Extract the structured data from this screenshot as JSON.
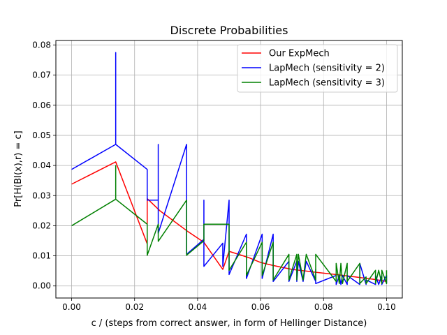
{
  "chart_data": {
    "type": "line",
    "title": "Discrete Probabilities",
    "xlabel": "c / (steps from correct answer, in form of Hellinger Distance)",
    "ylabel": "Pr[H(BI(x),r) = c]",
    "xlim": [
      -0.005,
      0.105
    ],
    "ylim": [
      -0.004,
      0.0815
    ],
    "grid": true,
    "legend_position": "upper right",
    "x_ticks": [
      0.0,
      0.02,
      0.04,
      0.06,
      0.08,
      0.1
    ],
    "x_tick_labels": [
      "0.00",
      "0.02",
      "0.04",
      "0.06",
      "0.08",
      "0.10"
    ],
    "y_ticks": [
      0.0,
      0.01,
      0.02,
      0.03,
      0.04,
      0.05,
      0.06,
      0.07,
      0.08
    ],
    "y_tick_labels": [
      "0.00",
      "0.01",
      "0.02",
      "0.03",
      "0.04",
      "0.05",
      "0.06",
      "0.07",
      "0.08"
    ],
    "series": [
      {
        "name": "Our ExpMech",
        "color": "#ff0000",
        "x": [
          0.0,
          0.014,
          0.024,
          0.024,
          0.028,
          0.037,
          0.042,
          0.048,
          0.05,
          0.056,
          0.06,
          0.064,
          0.07,
          0.074,
          0.078,
          0.084,
          0.09,
          0.096,
          0.1
        ],
        "y": [
          0.0338,
          0.0412,
          0.014,
          0.029,
          0.025,
          0.018,
          0.0145,
          0.0055,
          0.0115,
          0.0095,
          0.0078,
          0.0068,
          0.0055,
          0.005,
          0.0045,
          0.0038,
          0.003,
          0.0022,
          0.0015
        ]
      },
      {
        "name": "LapMech (sensitivity = 2)",
        "color": "#0000ff",
        "x": [
          0.0,
          0.014,
          0.014,
          0.014,
          0.024,
          0.024,
          0.024,
          0.0275,
          0.0275,
          0.0275,
          0.0365,
          0.0365,
          0.0365,
          0.042,
          0.042,
          0.042,
          0.048,
          0.048,
          0.05,
          0.05,
          0.05,
          0.0555,
          0.0555,
          0.0555,
          0.0605,
          0.0605,
          0.0605,
          0.064,
          0.064,
          0.064,
          0.069,
          0.069,
          0.069,
          0.0715,
          0.0715,
          0.072,
          0.0735,
          0.0745,
          0.0775,
          0.0775,
          0.0775,
          0.084,
          0.084,
          0.085,
          0.0855,
          0.086,
          0.0875,
          0.0875,
          0.0915,
          0.0915,
          0.0935,
          0.0935,
          0.0965,
          0.0965,
          0.0975,
          0.0985,
          0.0985,
          0.1,
          0.1
        ],
        "y": [
          0.0387,
          0.047,
          0.0775,
          0.047,
          0.0387,
          0.0285,
          0.0285,
          0.0285,
          0.047,
          0.0175,
          0.047,
          0.0105,
          0.0105,
          0.0155,
          0.0285,
          0.0065,
          0.0142,
          0.0065,
          0.0285,
          0.0038,
          0.0038,
          0.0172,
          0.0025,
          0.0025,
          0.0172,
          0.0025,
          0.0025,
          0.0172,
          0.0015,
          0.0015,
          0.0082,
          0.0015,
          0.0015,
          0.0082,
          0.0015,
          0.0082,
          0.0015,
          0.0082,
          0.0015,
          0.0055,
          0.0008,
          0.0035,
          0.0005,
          0.0035,
          0.0005,
          0.0035,
          0.0005,
          0.0035,
          0.0005,
          0.0075,
          0.0005,
          0.002,
          0.0005,
          0.0035,
          0.0005,
          0.0035,
          0.0005,
          0.0035,
          0.0008
        ]
      },
      {
        "name": "LapMech (sensitivity = 3)",
        "color": "#008000",
        "x": [
          0.0,
          0.014,
          0.014,
          0.014,
          0.024,
          0.024,
          0.024,
          0.0275,
          0.0275,
          0.0365,
          0.0365,
          0.0365,
          0.042,
          0.042,
          0.05,
          0.05,
          0.05,
          0.0555,
          0.0555,
          0.0605,
          0.0605,
          0.064,
          0.064,
          0.069,
          0.069,
          0.0715,
          0.0715,
          0.072,
          0.0735,
          0.0745,
          0.0775,
          0.0775,
          0.084,
          0.084,
          0.085,
          0.0855,
          0.086,
          0.0875,
          0.0875,
          0.0915,
          0.0915,
          0.0935,
          0.0935,
          0.0965,
          0.0965,
          0.0975,
          0.0985,
          0.0985,
          0.1,
          0.1
        ],
        "y": [
          0.02,
          0.0288,
          0.04,
          0.0288,
          0.0205,
          0.0205,
          0.0102,
          0.0205,
          0.0148,
          0.0285,
          0.0102,
          0.0102,
          0.015,
          0.0205,
          0.0205,
          0.0052,
          0.0052,
          0.0145,
          0.0035,
          0.0145,
          0.0035,
          0.0145,
          0.002,
          0.0105,
          0.002,
          0.0105,
          0.002,
          0.0105,
          0.002,
          0.0105,
          0.002,
          0.0105,
          0.0015,
          0.0075,
          0.0008,
          0.0075,
          0.0008,
          0.0075,
          0.0015,
          0.0075,
          0.0008,
          0.003,
          0.0008,
          0.0052,
          0.0008,
          0.0052,
          0.0008,
          0.0052,
          0.0008,
          0.0052
        ]
      }
    ]
  }
}
